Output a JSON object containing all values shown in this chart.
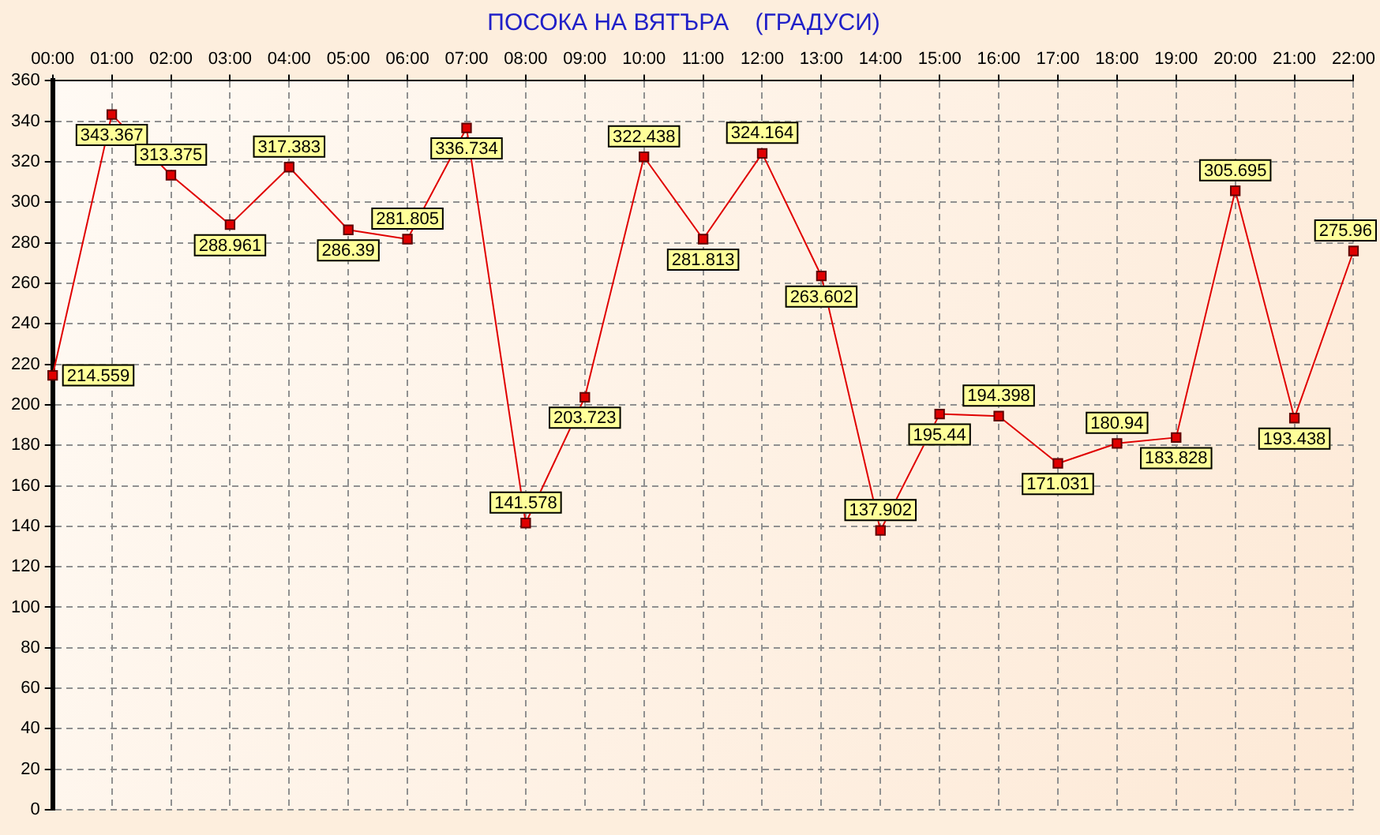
{
  "chart_data": {
    "type": "line",
    "title": "ПОСОКА НА ВЯТЪРА    (ГРАДУСИ)",
    "categories": [
      "00:00",
      "01:00",
      "02:00",
      "03:00",
      "04:00",
      "05:00",
      "06:00",
      "07:00",
      "08:00",
      "09:00",
      "10:00",
      "11:00",
      "12:00",
      "13:00",
      "14:00",
      "15:00",
      "16:00",
      "17:00",
      "18:00",
      "19:00",
      "20:00",
      "21:00",
      "22:00"
    ],
    "series": [
      {
        "color": "#e00000",
        "values": [
          214.559,
          343.367,
          313.375,
          288.961,
          317.383,
          286.39,
          281.805,
          336.734,
          141.578,
          203.723,
          322.438,
          281.813,
          324.164,
          263.602,
          137.902,
          195.44,
          194.398,
          171.031,
          180.94,
          183.828,
          305.695,
          193.438,
          275.96
        ]
      }
    ],
    "ylim": [
      0,
      360
    ],
    "yticks": [
      0,
      20,
      40,
      60,
      80,
      100,
      120,
      140,
      160,
      180,
      200,
      220,
      240,
      260,
      280,
      300,
      320,
      340,
      360
    ],
    "grid": true,
    "legend": false,
    "marker": "square",
    "line_style": "solid",
    "data_labels": true
  }
}
